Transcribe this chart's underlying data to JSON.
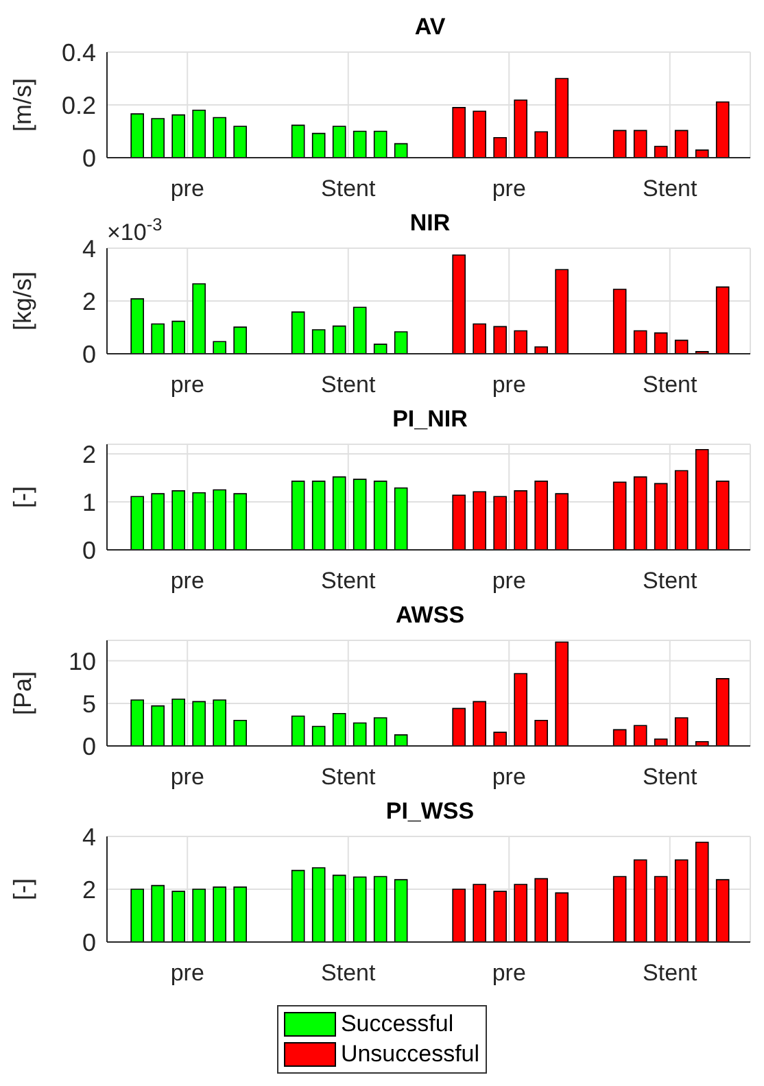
{
  "chart_data": [
    {
      "type": "bar",
      "title": "AV",
      "ylabel": "[m/s]",
      "categories": [
        "pre",
        "Stent",
        "pre",
        "Stent"
      ],
      "ylim": [
        0,
        0.4
      ],
      "yticks": [
        0,
        0.2,
        0.4
      ],
      "grid": true,
      "series": [
        {
          "color": "#00ff00",
          "values": [
            0.166,
            0.123,
            null,
            null
          ]
        },
        {
          "color": "#00ff00",
          "values": [
            0.148,
            0.092,
            null,
            null
          ]
        },
        {
          "color": "#00ff00",
          "values": [
            0.162,
            0.119,
            null,
            null
          ]
        },
        {
          "color": "#00ff00",
          "values": [
            0.18,
            0.1,
            null,
            null
          ]
        },
        {
          "color": "#00ff00",
          "values": [
            0.152,
            0.1,
            null,
            null
          ]
        },
        {
          "color": "#00ff00",
          "values": [
            0.119,
            0.053,
            null,
            null
          ]
        },
        {
          "color": "#ff0000",
          "values": [
            null,
            null,
            0.19,
            0.103
          ]
        },
        {
          "color": "#ff0000",
          "values": [
            null,
            null,
            0.176,
            0.103
          ]
        },
        {
          "color": "#ff0000",
          "values": [
            null,
            null,
            0.076,
            0.043
          ]
        },
        {
          "color": "#ff0000",
          "values": [
            null,
            null,
            0.218,
            0.103
          ]
        },
        {
          "color": "#ff0000",
          "values": [
            null,
            null,
            0.098,
            0.029
          ]
        },
        {
          "color": "#ff0000",
          "values": [
            null,
            null,
            0.3,
            0.211
          ]
        }
      ]
    },
    {
      "type": "bar",
      "title": "NIR",
      "ylabel": "[kg/s]",
      "annotations": [
        "×10$^{-3}$"
      ],
      "categories": [
        "pre",
        "Stent",
        "pre",
        "Stent"
      ],
      "ylim": [
        0,
        4
      ],
      "yticks": [
        0,
        2,
        4
      ],
      "grid": true,
      "series": [
        {
          "color": "#00ff00",
          "values": [
            2.08,
            1.58,
            null,
            null
          ]
        },
        {
          "color": "#00ff00",
          "values": [
            1.13,
            0.91,
            null,
            null
          ]
        },
        {
          "color": "#00ff00",
          "values": [
            1.23,
            1.05,
            null,
            null
          ]
        },
        {
          "color": "#00ff00",
          "values": [
            2.65,
            1.76,
            null,
            null
          ]
        },
        {
          "color": "#00ff00",
          "values": [
            0.46,
            0.36,
            null,
            null
          ]
        },
        {
          "color": "#00ff00",
          "values": [
            1.01,
            0.83,
            null,
            null
          ]
        },
        {
          "color": "#ff0000",
          "values": [
            null,
            null,
            3.74,
            2.44
          ]
        },
        {
          "color": "#ff0000",
          "values": [
            null,
            null,
            1.13,
            0.87
          ]
        },
        {
          "color": "#ff0000",
          "values": [
            null,
            null,
            1.03,
            0.79
          ]
        },
        {
          "color": "#ff0000",
          "values": [
            null,
            null,
            0.87,
            0.51
          ]
        },
        {
          "color": "#ff0000",
          "values": [
            null,
            null,
            0.26,
            0.08
          ]
        },
        {
          "color": "#ff0000",
          "values": [
            null,
            null,
            3.19,
            2.53
          ]
        }
      ]
    },
    {
      "type": "bar",
      "title": "PI_NIR",
      "ylabel": "[-]",
      "categories": [
        "pre",
        "Stent",
        "pre",
        "Stent"
      ],
      "ylim": [
        0,
        2.2
      ],
      "yticks": [
        0,
        1,
        2
      ],
      "grid": true,
      "series": [
        {
          "color": "#00ff00",
          "values": [
            1.11,
            1.43,
            null,
            null
          ]
        },
        {
          "color": "#00ff00",
          "values": [
            1.17,
            1.43,
            null,
            null
          ]
        },
        {
          "color": "#00ff00",
          "values": [
            1.23,
            1.52,
            null,
            null
          ]
        },
        {
          "color": "#00ff00",
          "values": [
            1.19,
            1.47,
            null,
            null
          ]
        },
        {
          "color": "#00ff00",
          "values": [
            1.25,
            1.43,
            null,
            null
          ]
        },
        {
          "color": "#00ff00",
          "values": [
            1.17,
            1.29,
            null,
            null
          ]
        },
        {
          "color": "#ff0000",
          "values": [
            null,
            null,
            1.14,
            1.41
          ]
        },
        {
          "color": "#ff0000",
          "values": [
            null,
            null,
            1.21,
            1.52
          ]
        },
        {
          "color": "#ff0000",
          "values": [
            null,
            null,
            1.11,
            1.38
          ]
        },
        {
          "color": "#ff0000",
          "values": [
            null,
            null,
            1.23,
            1.65
          ]
        },
        {
          "color": "#ff0000",
          "values": [
            null,
            null,
            1.43,
            2.09
          ]
        },
        {
          "color": "#ff0000",
          "values": [
            null,
            null,
            1.17,
            1.43
          ]
        }
      ]
    },
    {
      "type": "bar",
      "title": "AWSS",
      "ylabel": "[Pa]",
      "categories": [
        "pre",
        "Stent",
        "pre",
        "Stent"
      ],
      "ylim": [
        0,
        12.4
      ],
      "yticks": [
        0,
        5,
        10
      ],
      "grid": true,
      "series": [
        {
          "color": "#00ff00",
          "values": [
            5.4,
            3.5,
            null,
            null
          ]
        },
        {
          "color": "#00ff00",
          "values": [
            4.7,
            2.3,
            null,
            null
          ]
        },
        {
          "color": "#00ff00",
          "values": [
            5.5,
            3.8,
            null,
            null
          ]
        },
        {
          "color": "#00ff00",
          "values": [
            5.2,
            2.7,
            null,
            null
          ]
        },
        {
          "color": "#00ff00",
          "values": [
            5.4,
            3.3,
            null,
            null
          ]
        },
        {
          "color": "#00ff00",
          "values": [
            3.0,
            1.3,
            null,
            null
          ]
        },
        {
          "color": "#ff0000",
          "values": [
            null,
            null,
            4.4,
            1.9
          ]
        },
        {
          "color": "#ff0000",
          "values": [
            null,
            null,
            5.2,
            2.4
          ]
        },
        {
          "color": "#ff0000",
          "values": [
            null,
            null,
            1.6,
            0.8
          ]
        },
        {
          "color": "#ff0000",
          "values": [
            null,
            null,
            8.5,
            3.3
          ]
        },
        {
          "color": "#ff0000",
          "values": [
            null,
            null,
            3.0,
            0.5
          ]
        },
        {
          "color": "#ff0000",
          "values": [
            null,
            null,
            12.2,
            7.9
          ]
        }
      ]
    },
    {
      "type": "bar",
      "title": "PI_WSS",
      "ylabel": "[-]",
      "categories": [
        "pre",
        "Stent",
        "pre",
        "Stent"
      ],
      "ylim": [
        0,
        4
      ],
      "yticks": [
        0,
        2,
        4
      ],
      "grid": true,
      "legend": "bottom",
      "series": [
        {
          "name": "Successful",
          "color": "#00ff00",
          "values": [
            2.0,
            2.71,
            null,
            null
          ]
        },
        {
          "color": "#00ff00",
          "values": [
            2.14,
            2.81,
            null,
            null
          ]
        },
        {
          "color": "#00ff00",
          "values": [
            1.92,
            2.53,
            null,
            null
          ]
        },
        {
          "color": "#00ff00",
          "values": [
            2.0,
            2.46,
            null,
            null
          ]
        },
        {
          "color": "#00ff00",
          "values": [
            2.08,
            2.48,
            null,
            null
          ]
        },
        {
          "color": "#00ff00",
          "values": [
            2.08,
            2.36,
            null,
            null
          ]
        },
        {
          "name": "Unsuccessful",
          "color": "#ff0000",
          "values": [
            null,
            null,
            2.0,
            2.48
          ]
        },
        {
          "color": "#ff0000",
          "values": [
            null,
            null,
            2.18,
            3.11
          ]
        },
        {
          "color": "#ff0000",
          "values": [
            null,
            null,
            1.92,
            2.48
          ]
        },
        {
          "color": "#ff0000",
          "values": [
            null,
            null,
            2.18,
            3.11
          ]
        },
        {
          "color": "#ff0000",
          "values": [
            null,
            null,
            2.4,
            3.78
          ]
        },
        {
          "color": "#ff0000",
          "values": [
            null,
            null,
            1.86,
            2.36
          ]
        }
      ]
    }
  ]
}
